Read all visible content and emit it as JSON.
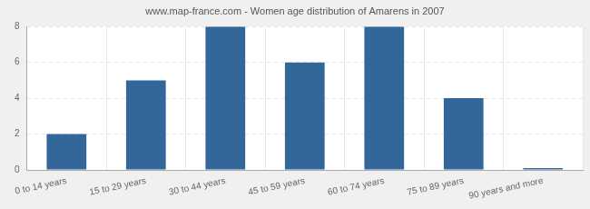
{
  "chart_data": {
    "type": "bar",
    "title": "www.map-france.com - Women age distribution of Amarens in 2007",
    "categories": [
      "0 to 14 years",
      "15 to 29 years",
      "30 to 44 years",
      "45 to 59 years",
      "60 to 74 years",
      "75 to 89 years",
      "90 years and more"
    ],
    "values": [
      2,
      5,
      8,
      6,
      8,
      4,
      0
    ],
    "color": "#336699",
    "ylim": [
      0,
      8
    ],
    "yticks": [
      0,
      2,
      4,
      6,
      8
    ],
    "grid": true
  }
}
